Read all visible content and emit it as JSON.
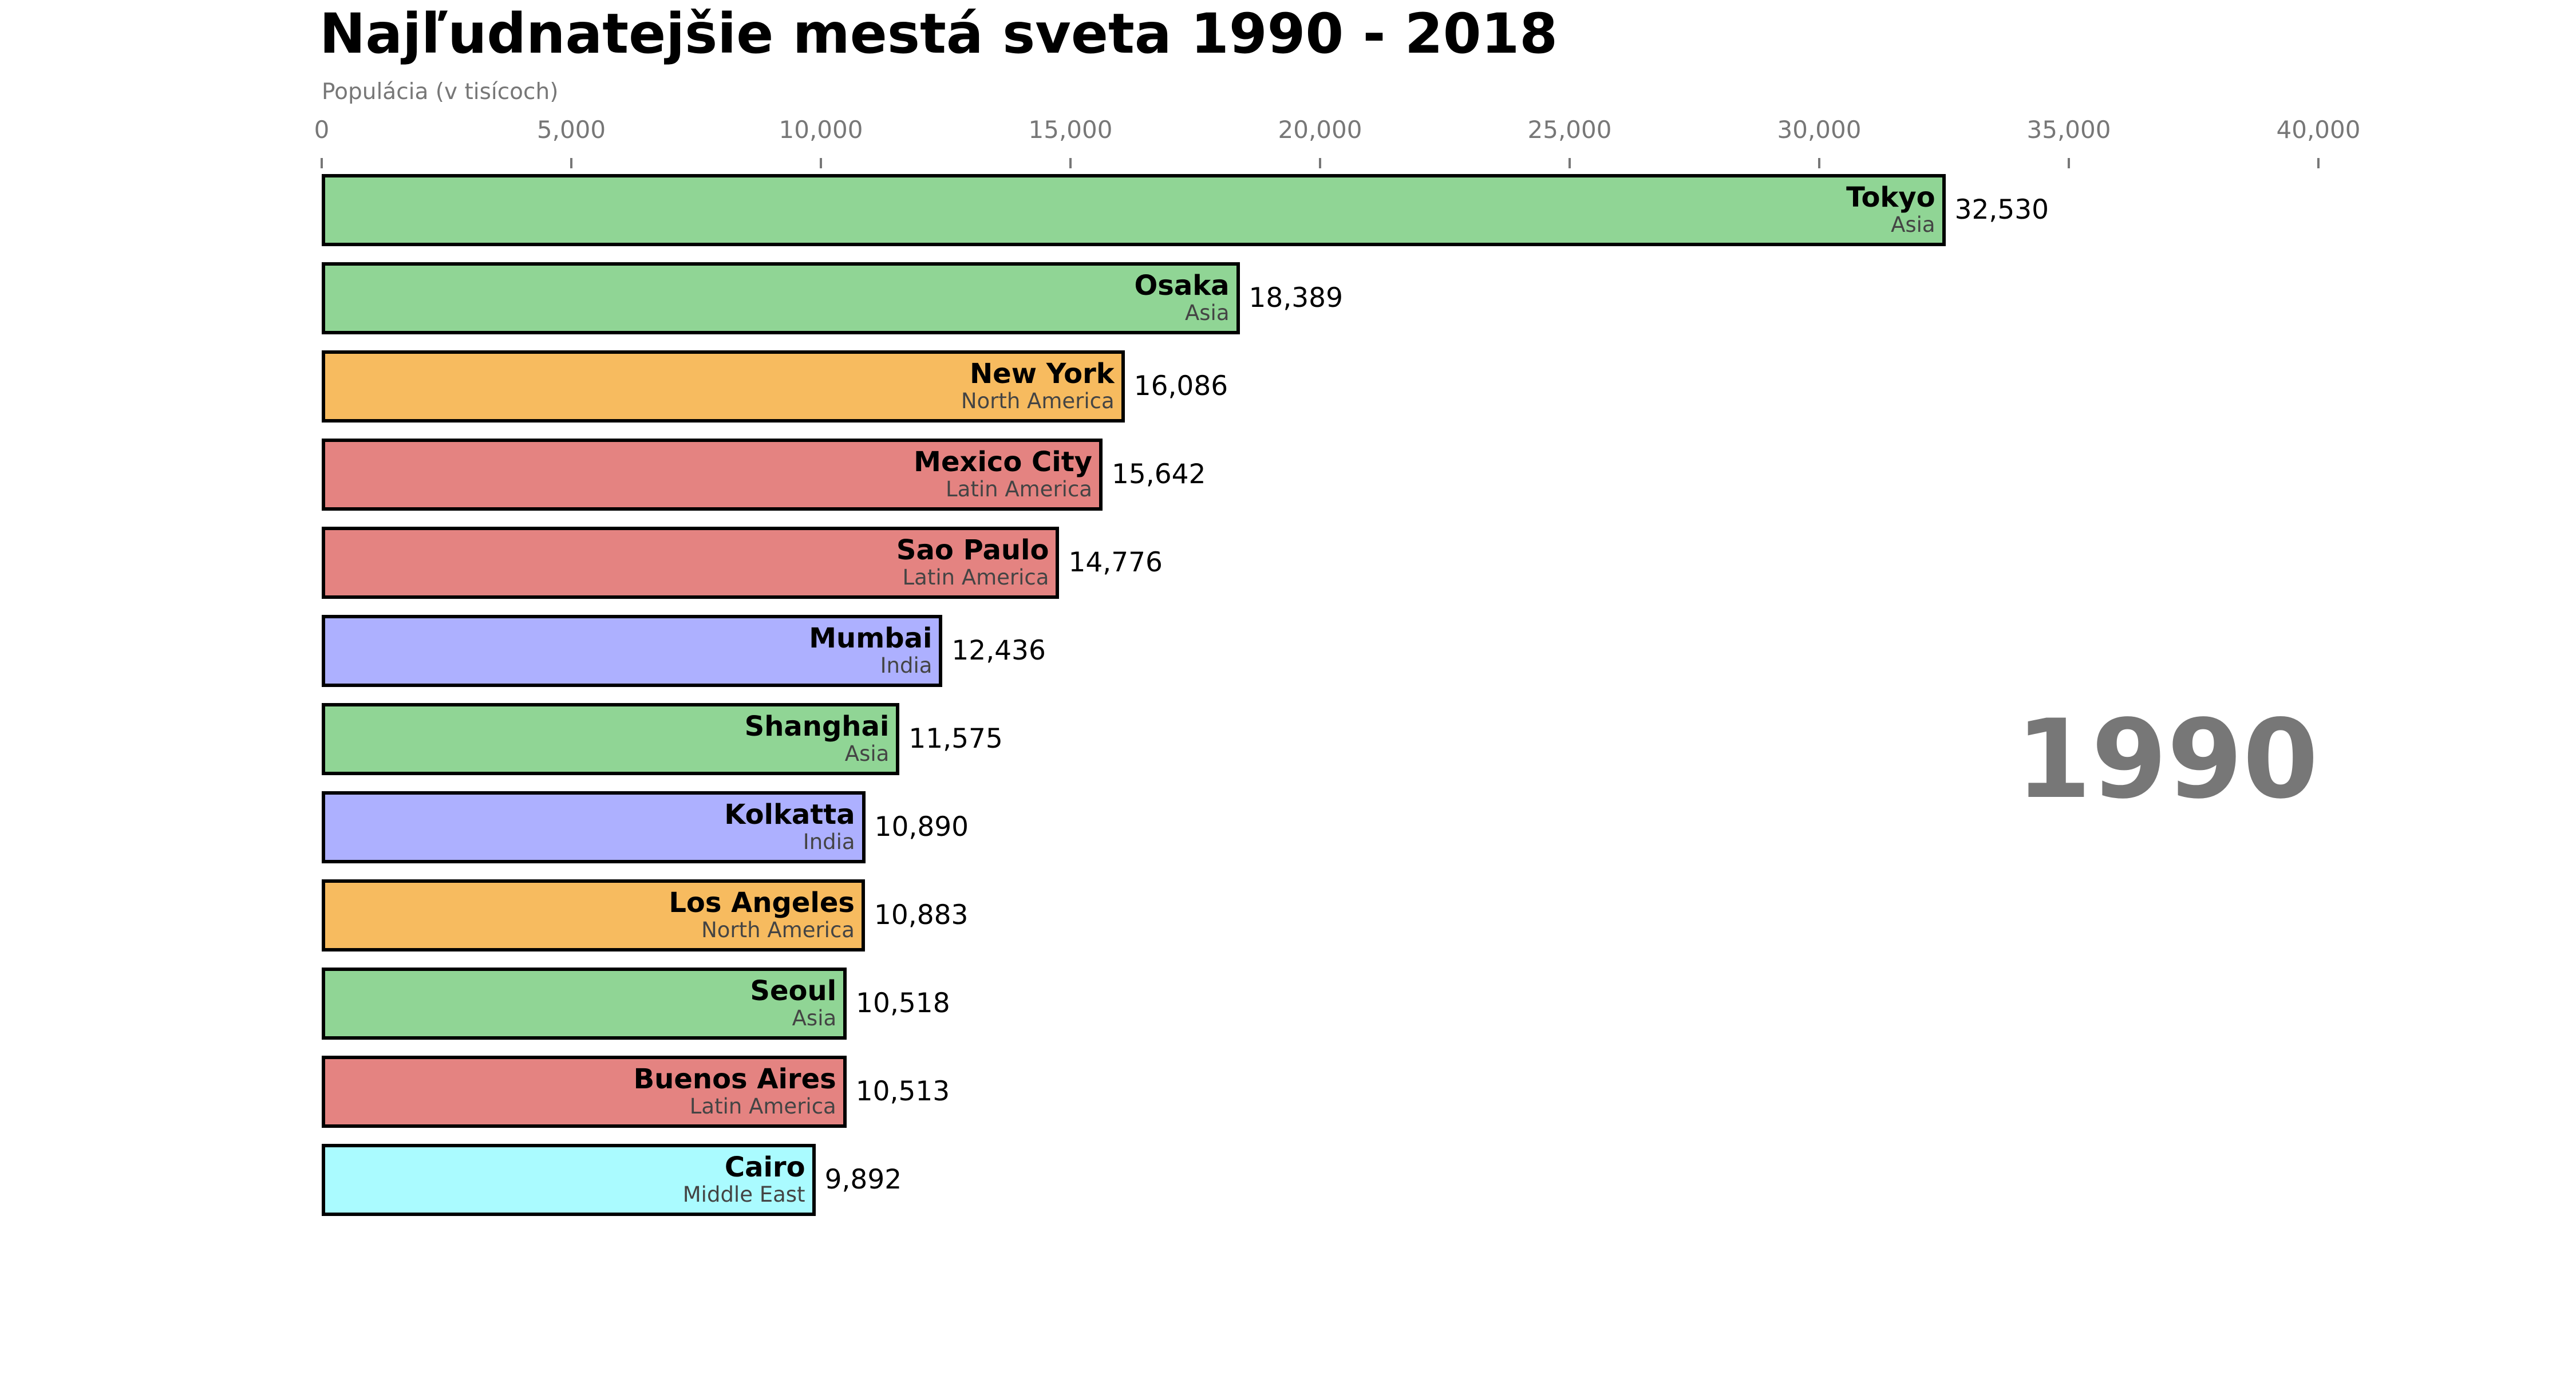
{
  "chart_data": {
    "type": "bar",
    "orientation": "horizontal",
    "title": "Najľudnatejšie mestá sveta 1990 - 2018",
    "xlabel": "Populácia (v tisícoch)",
    "year_annotation": "1990",
    "xlim": [
      0,
      40000
    ],
    "grid": false,
    "legend": false,
    "x_tick_values": [
      0,
      5000,
      10000,
      15000,
      20000,
      25000,
      30000,
      35000,
      40000
    ],
    "x_tick_labels": [
      "0",
      "5,000",
      "10,000",
      "15,000",
      "20,000",
      "25,000",
      "30,000",
      "35,000",
      "40,000"
    ],
    "bars": [
      {
        "city": "Tokyo",
        "region": "Asia",
        "value": 32530,
        "value_label": "32,530",
        "color": "#90d595"
      },
      {
        "city": "Osaka",
        "region": "Asia",
        "value": 18389,
        "value_label": "18,389",
        "color": "#90d595"
      },
      {
        "city": "New York",
        "region": "North America",
        "value": 16086,
        "value_label": "16,086",
        "color": "#f7bb5f"
      },
      {
        "city": "Mexico City",
        "region": "Latin America",
        "value": 15642,
        "value_label": "15,642",
        "color": "#e48381"
      },
      {
        "city": "Sao Paulo",
        "region": "Latin America",
        "value": 14776,
        "value_label": "14,776",
        "color": "#e48381"
      },
      {
        "city": "Mumbai",
        "region": "India",
        "value": 12436,
        "value_label": "12,436",
        "color": "#adb0ff"
      },
      {
        "city": "Shanghai",
        "region": "Asia",
        "value": 11575,
        "value_label": "11,575",
        "color": "#90d595"
      },
      {
        "city": "Kolkatta",
        "region": "India",
        "value": 10890,
        "value_label": "10,890",
        "color": "#adb0ff"
      },
      {
        "city": "Los Angeles",
        "region": "North America",
        "value": 10883,
        "value_label": "10,883",
        "color": "#f7bb5f"
      },
      {
        "city": "Seoul",
        "region": "Asia",
        "value": 10518,
        "value_label": "10,518",
        "color": "#90d595"
      },
      {
        "city": "Buenos Aires",
        "region": "Latin America",
        "value": 10513,
        "value_label": "10,513",
        "color": "#e48381"
      },
      {
        "city": "Cairo",
        "region": "Middle East",
        "value": 9892,
        "value_label": "9,892",
        "color": "#aafbff"
      }
    ],
    "region_colors": {
      "Asia": "#90d595",
      "North America": "#f7bb5f",
      "Latin America": "#e48381",
      "India": "#adb0ff",
      "Middle East": "#aafbff"
    },
    "text_colors": {
      "title": "#000000",
      "subtitle": "#777777",
      "tick": "#777777",
      "city": "#000000",
      "region": "#444444",
      "value": "#000000",
      "year": "#777777",
      "bar_border": "#000000"
    }
  }
}
